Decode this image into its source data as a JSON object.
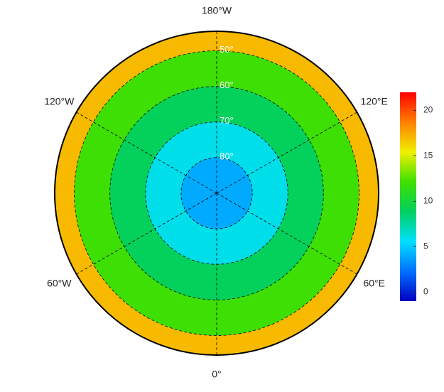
{
  "map": {
    "lon_ticks": [
      {
        "value": -180,
        "label": "180°W"
      },
      {
        "value": 120,
        "label": "120°E"
      },
      {
        "value": 60,
        "label": "60°E"
      },
      {
        "value": 0,
        "label": "0°"
      },
      {
        "value": -60,
        "label": "60°W"
      },
      {
        "value": -120,
        "label": "120°W"
      }
    ],
    "lat_ticks": [
      {
        "value": 80,
        "label": "80°"
      },
      {
        "value": 70,
        "label": "70°"
      },
      {
        "value": 60,
        "label": "60°"
      },
      {
        "value": 50,
        "label": "50°"
      }
    ],
    "field": {
      "band_edges": [
        44.5,
        50,
        60,
        70,
        80,
        90
      ],
      "values": [
        17,
        12,
        9,
        6,
        4
      ]
    },
    "colorbar": {
      "lim": [
        -1,
        22
      ],
      "ticks": [
        0,
        5,
        10,
        15,
        20
      ],
      "colormap": [
        "#0000c0",
        "#0070ff",
        "#00e0ff",
        "#00d060",
        "#40e000",
        "#f0f000",
        "#ff8000",
        "#ff0000"
      ]
    }
  }
}
